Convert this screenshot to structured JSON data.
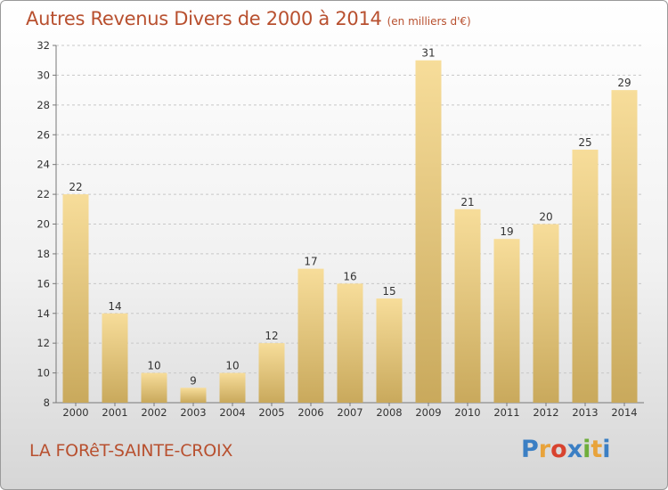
{
  "header": {
    "title": "Autres Revenus Divers de 2000 à 2014",
    "unit": "(en milliers d'€)"
  },
  "footer": {
    "commune": "LA FORêT-SAINTE-CROIX",
    "brand": "Proxiti",
    "brand_colors": [
      "#3b7fc4",
      "#e8a33b",
      "#d8432f",
      "#3b7fc4",
      "#6fae3c",
      "#e8a33b",
      "#3b7fc4"
    ]
  },
  "colors": {
    "bar_top": "#f7dd9a",
    "bar_bottom": "#c9a95c",
    "title": "#b8502f",
    "grid": "#c8c8c8"
  },
  "chart_data": {
    "type": "bar",
    "title": "Autres Revenus Divers de 2000 à 2014",
    "xlabel": "",
    "ylabel": "",
    "categories": [
      "2000",
      "2001",
      "2002",
      "2003",
      "2004",
      "2005",
      "2006",
      "2007",
      "2008",
      "2009",
      "2010",
      "2011",
      "2012",
      "2013",
      "2014"
    ],
    "values": [
      22,
      14,
      10,
      9,
      10,
      12,
      17,
      16,
      15,
      31,
      21,
      19,
      20,
      25,
      29
    ],
    "ylim": [
      8,
      32
    ],
    "yticks": [
      8,
      10,
      12,
      14,
      16,
      18,
      20,
      22,
      24,
      26,
      28,
      30,
      32
    ],
    "grid": "horizontal dashed",
    "data_labels": true
  }
}
